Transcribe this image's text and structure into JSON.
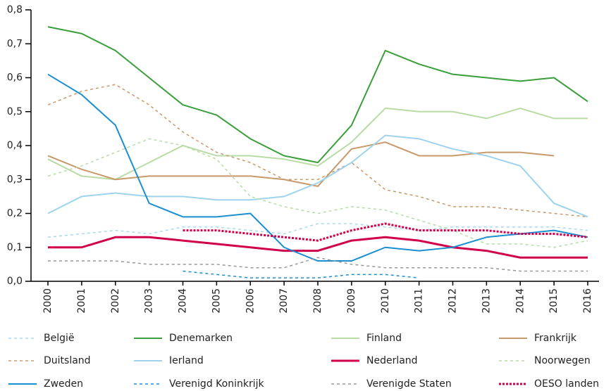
{
  "chart_data": {
    "type": "line",
    "categories": [
      "2000",
      "2001",
      "2002",
      "2003",
      "2004",
      "2005",
      "2006",
      "2007",
      "2008",
      "2009",
      "2010",
      "2011",
      "2012",
      "2013",
      "2014",
      "2015",
      "2016"
    ],
    "ylim": [
      0,
      0.8
    ],
    "yticks": [
      {
        "value": 0,
        "label": "0,0"
      },
      {
        "value": 0.1,
        "label": "0,1"
      },
      {
        "value": 0.2,
        "label": "0,2"
      },
      {
        "value": 0.3,
        "label": "0,3"
      },
      {
        "value": 0.4,
        "label": "0,4"
      },
      {
        "value": 0.5,
        "label": "0,5"
      },
      {
        "value": 0.6,
        "label": "0,6"
      },
      {
        "value": 0.7,
        "label": "0,7"
      },
      {
        "value": 0.8,
        "label": "0,8"
      }
    ],
    "legend": "bottom",
    "series": [
      {
        "name": "België",
        "color": "#a8d8f0",
        "linestyle": "dashed",
        "linewidth": 1.5,
        "values": [
          0.13,
          0.14,
          0.15,
          0.14,
          0.16,
          0.16,
          0.15,
          0.14,
          0.17,
          0.17,
          0.16,
          0.15,
          0.16,
          0.16,
          0.16,
          0.16,
          0.15
        ]
      },
      {
        "name": "Denemarken",
        "color": "#3a9e3a",
        "linestyle": "solid",
        "linewidth": 2,
        "values": [
          0.75,
          0.73,
          0.68,
          0.6,
          0.52,
          0.49,
          0.42,
          0.37,
          0.35,
          0.46,
          0.68,
          0.64,
          0.61,
          0.6,
          0.59,
          0.6,
          0.53
        ]
      },
      {
        "name": "Finland",
        "color": "#b8dca4",
        "linestyle": "solid",
        "linewidth": 2,
        "values": [
          0.36,
          0.31,
          0.3,
          0.35,
          0.4,
          0.37,
          0.37,
          0.36,
          0.34,
          0.41,
          0.51,
          0.5,
          0.5,
          0.48,
          0.51,
          0.48,
          0.48
        ]
      },
      {
        "name": "Frankrijk",
        "color": "#c8996a",
        "linestyle": "solid",
        "linewidth": 2,
        "values": [
          0.37,
          0.33,
          0.3,
          0.31,
          0.31,
          0.31,
          0.31,
          0.3,
          0.28,
          0.39,
          0.41,
          0.37,
          0.37,
          0.38,
          0.38,
          0.37,
          null
        ]
      },
      {
        "name": "Duitsland",
        "color": "#c8996a",
        "linestyle": "dashed",
        "linewidth": 1.5,
        "values": [
          0.52,
          0.56,
          0.58,
          0.52,
          0.44,
          0.38,
          0.35,
          0.3,
          0.3,
          0.35,
          0.27,
          0.25,
          0.22,
          0.22,
          0.21,
          0.2,
          0.19
        ]
      },
      {
        "name": "Ierland",
        "color": "#9dd3ec",
        "linestyle": "solid",
        "linewidth": 2,
        "values": [
          0.2,
          0.25,
          0.26,
          0.25,
          0.25,
          0.24,
          0.24,
          0.25,
          0.29,
          0.35,
          0.43,
          0.42,
          0.39,
          0.37,
          0.34,
          0.23,
          0.19
        ]
      },
      {
        "name": "Nederland",
        "color": "#d1004b",
        "linestyle": "solid",
        "linewidth": 3,
        "values": [
          0.1,
          0.1,
          0.13,
          0.13,
          0.12,
          0.11,
          0.1,
          0.09,
          0.09,
          0.12,
          0.13,
          0.12,
          0.1,
          0.09,
          0.07,
          0.07,
          0.07
        ]
      },
      {
        "name": "Noorwegen",
        "color": "#b8dca4",
        "linestyle": "dashed",
        "linewidth": 1.5,
        "values": [
          0.31,
          0.34,
          0.38,
          0.42,
          0.4,
          0.36,
          0.25,
          0.22,
          0.2,
          0.22,
          0.21,
          0.18,
          0.15,
          0.11,
          0.11,
          0.1,
          0.12
        ]
      },
      {
        "name": "Zweden",
        "color": "#1a8fd1",
        "linestyle": "solid",
        "linewidth": 2,
        "values": [
          0.61,
          0.55,
          0.46,
          0.23,
          0.19,
          0.19,
          0.2,
          0.1,
          0.06,
          0.06,
          0.1,
          0.09,
          0.1,
          0.13,
          0.14,
          0.15,
          0.13
        ]
      },
      {
        "name": "Verenigd Koninkrijk",
        "color": "#1a8fd1",
        "linestyle": "dashed",
        "linewidth": 1.5,
        "values": [
          null,
          null,
          null,
          null,
          0.03,
          0.02,
          0.01,
          0.01,
          0.01,
          0.02,
          0.02,
          0.01,
          null,
          null,
          null,
          null,
          null
        ]
      },
      {
        "name": "Verenigde Staten",
        "color": "#999999",
        "linestyle": "dashed",
        "linewidth": 1.5,
        "values": [
          0.06,
          0.06,
          0.06,
          0.05,
          0.05,
          0.05,
          0.04,
          0.04,
          0.07,
          0.05,
          0.04,
          0.04,
          0.04,
          0.04,
          0.03,
          0.03,
          0.03
        ]
      },
      {
        "name": "OESO landen",
        "color": "#d1004b",
        "linestyle": "dotted",
        "linewidth": 3,
        "values": [
          null,
          null,
          null,
          null,
          0.15,
          0.15,
          0.14,
          0.13,
          0.12,
          0.15,
          0.17,
          0.15,
          0.15,
          0.15,
          0.14,
          0.14,
          0.13
        ]
      }
    ]
  }
}
